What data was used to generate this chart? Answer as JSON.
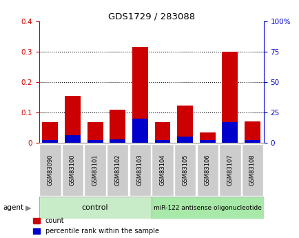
{
  "title": "GDS1729 / 283088",
  "samples": [
    "GSM83090",
    "GSM83100",
    "GSM83101",
    "GSM83102",
    "GSM83103",
    "GSM83104",
    "GSM83105",
    "GSM83106",
    "GSM83107",
    "GSM83108"
  ],
  "red_values": [
    0.068,
    0.155,
    0.068,
    0.11,
    0.315,
    0.068,
    0.122,
    0.035,
    0.3,
    0.07
  ],
  "blue_values": [
    0.01,
    0.025,
    0.008,
    0.012,
    0.08,
    0.008,
    0.02,
    0.008,
    0.068,
    0.01
  ],
  "red_color": "#cc0000",
  "blue_color": "#0000cc",
  "left_ylim": [
    0,
    0.4
  ],
  "right_ylim": [
    0,
    100
  ],
  "left_yticks": [
    0,
    0.1,
    0.2,
    0.3,
    0.4
  ],
  "right_yticks": [
    0,
    25,
    50,
    75,
    100
  ],
  "left_yticklabels": [
    "0",
    "0.1",
    "0.2",
    "0.3",
    "0.4"
  ],
  "right_yticklabels": [
    "0",
    "25",
    "50",
    "75",
    "100%"
  ],
  "left_tick_color": "#cc0000",
  "right_tick_color": "#0000cc",
  "grid_yticks": [
    0.1,
    0.2,
    0.3
  ],
  "ctrl_count": 5,
  "treat_count": 5,
  "control_label": "control",
  "treatment_label": "miR-122 antisense oligonucleotide",
  "agent_label": "agent",
  "legend_count": "count",
  "legend_pct": "percentile rank within the sample",
  "bar_width": 0.7,
  "xticklabel_bg": "#cccccc",
  "control_bg": "#c8ecc8",
  "treatment_bg": "#a8e8a8"
}
